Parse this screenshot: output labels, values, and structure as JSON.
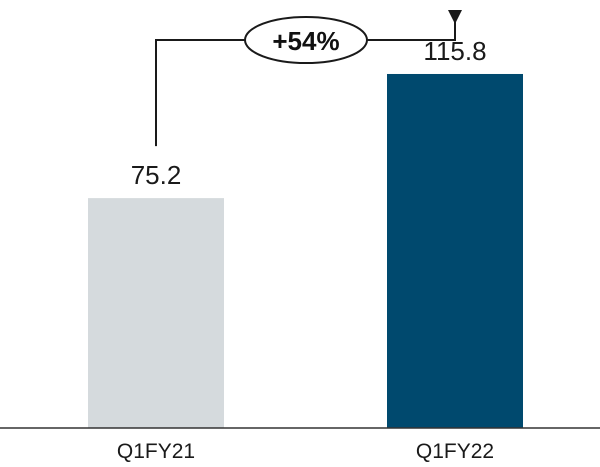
{
  "chart_data": {
    "type": "bar",
    "categories": [
      "Q1FY21",
      "Q1FY22"
    ],
    "values": [
      75.2,
      115.8
    ],
    "value_labels": [
      "75.2",
      "115.8"
    ],
    "bar_colors": [
      "#d5dadd",
      "#00496e"
    ],
    "ylim": [
      0,
      140
    ],
    "grid": false,
    "legend": "none",
    "annotation": {
      "text": "+54%",
      "type": "growth-arrow",
      "from": "Q1FY21",
      "to": "Q1FY22"
    }
  }
}
